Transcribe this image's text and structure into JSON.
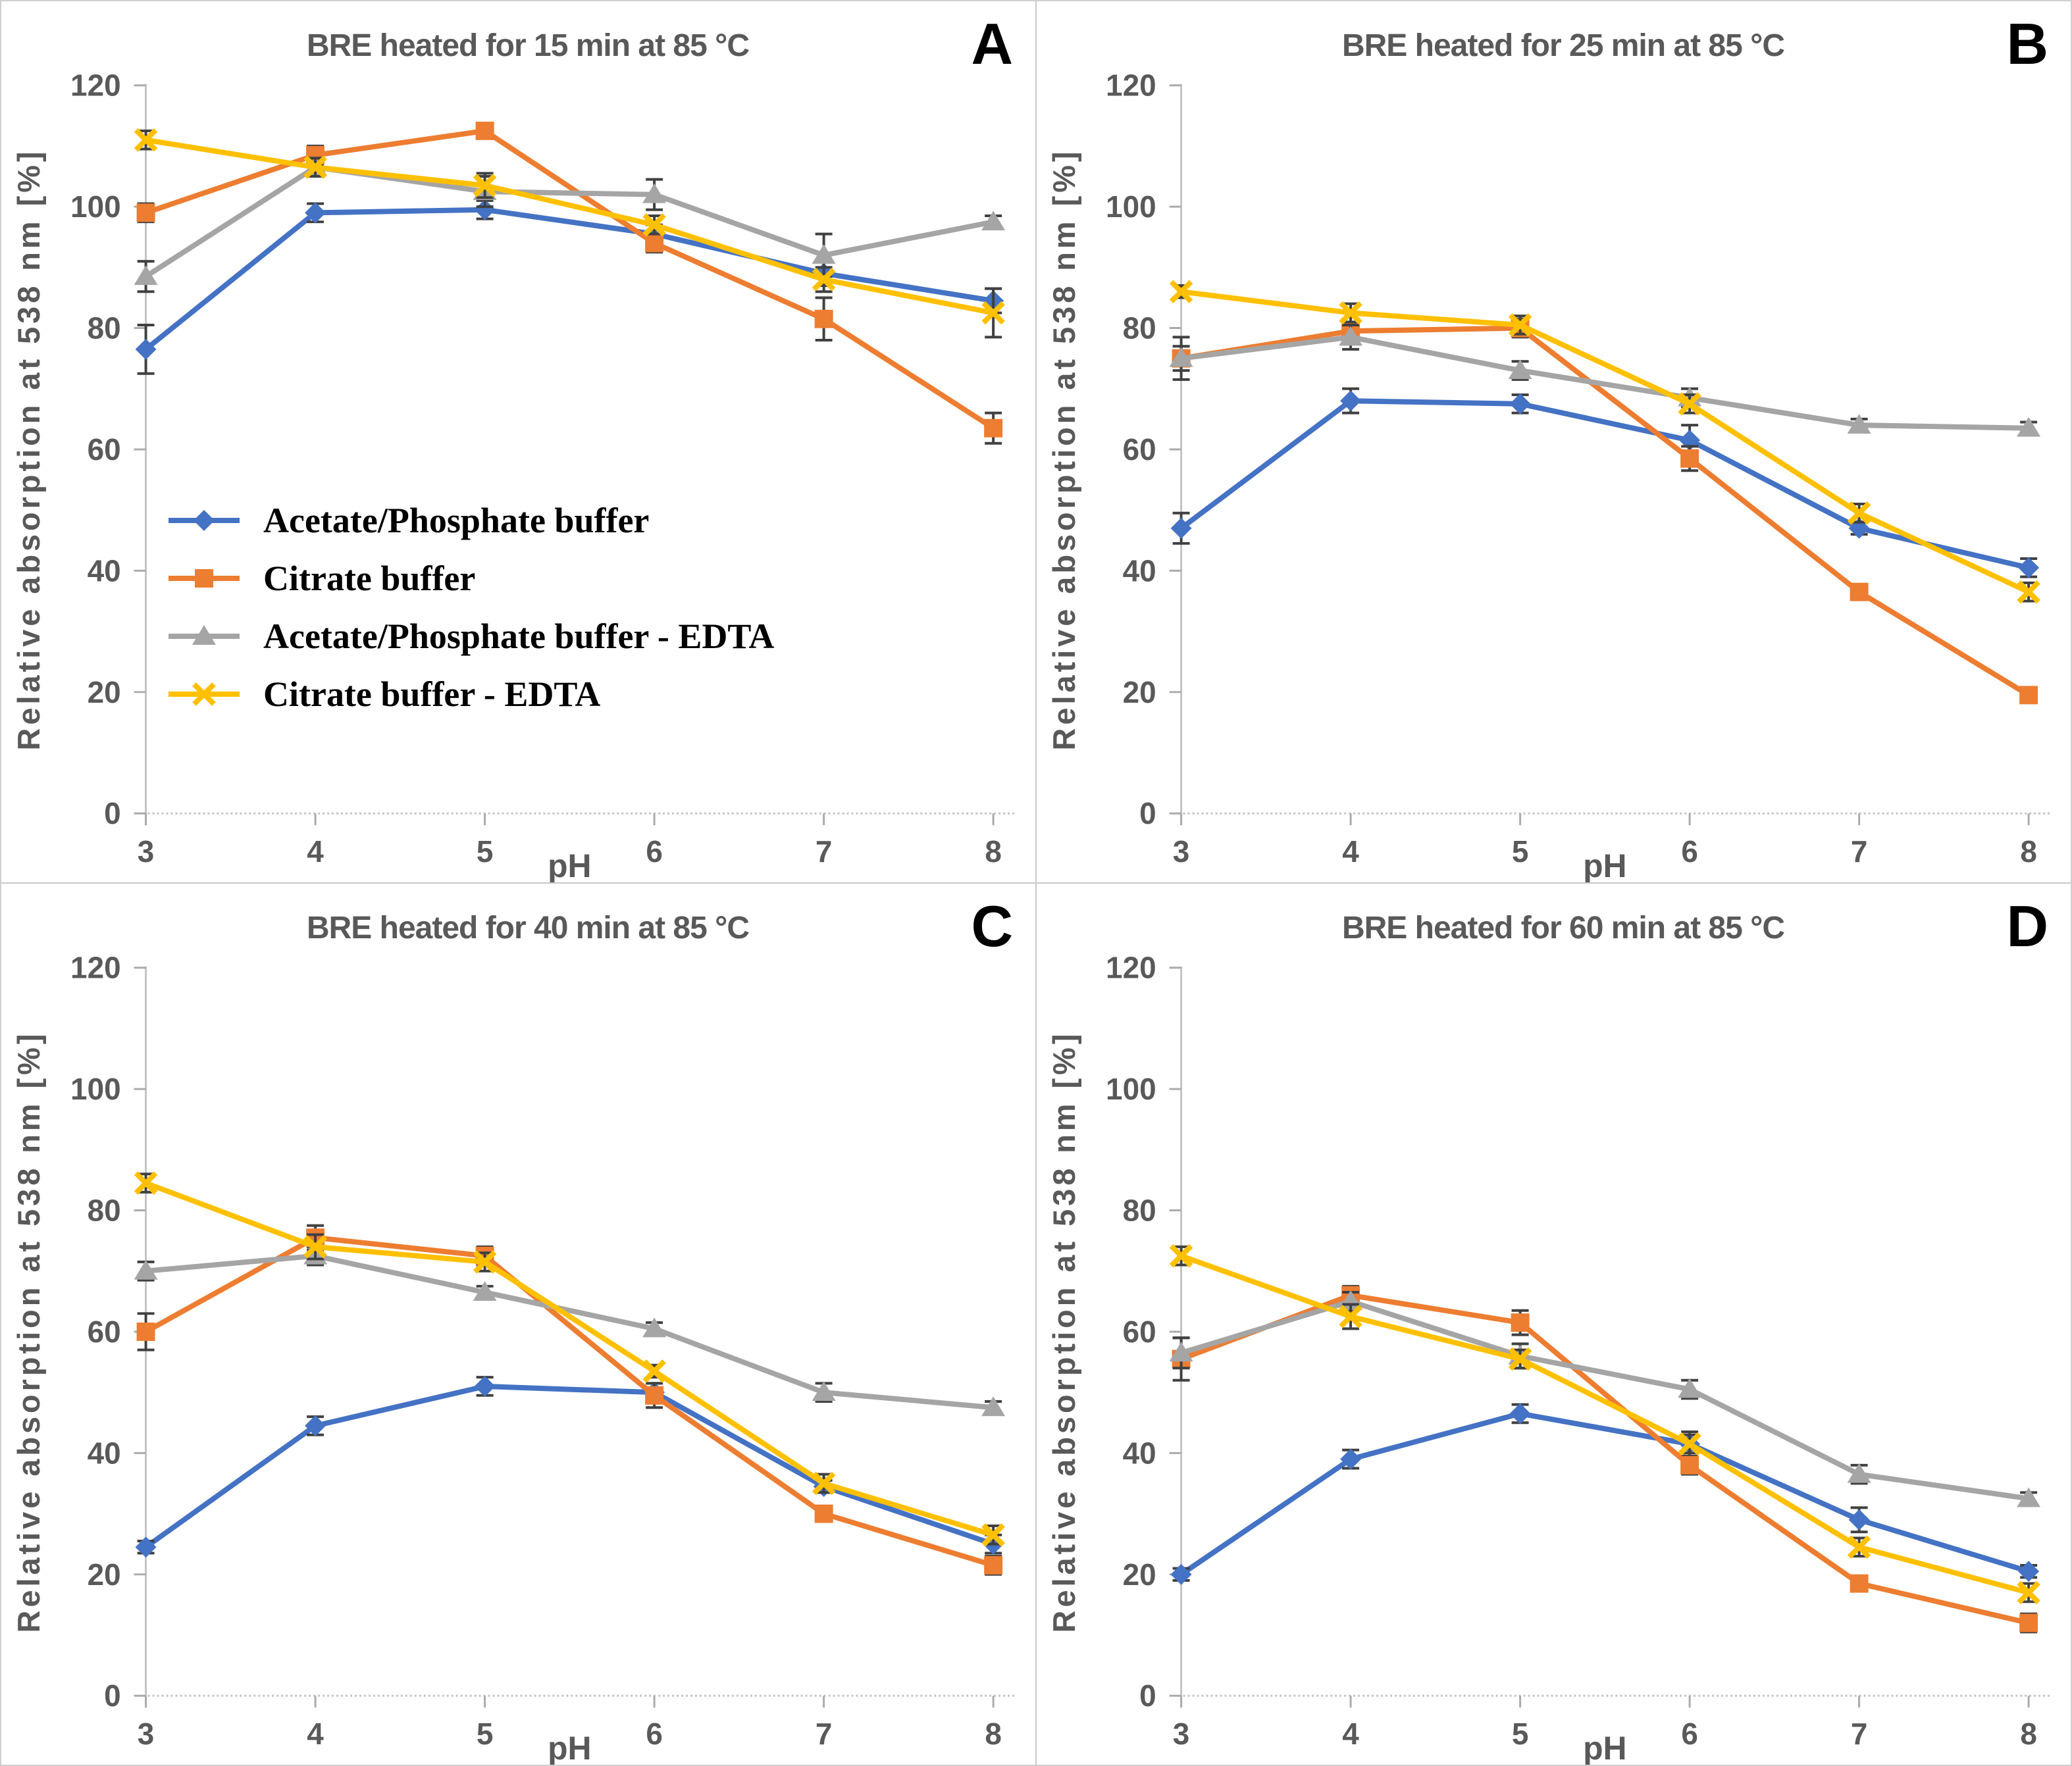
{
  "axes": {
    "ylabel": "Relative absorption at 538 nm [%]",
    "xlabel": "pH",
    "ymin": 0,
    "ymax": 120,
    "yticks": [
      0,
      20,
      40,
      60,
      80,
      100,
      120
    ],
    "x_categories": [
      3,
      4,
      5,
      6,
      7,
      8
    ],
    "grid": false,
    "axis_text_color": "#595959",
    "axis_line_color": "#c4c4c4",
    "tick_color": "#ababab",
    "error_bar_color": "#404040"
  },
  "legend": {
    "position": "inside-left-panel-A",
    "items": [
      "Acetate/Phosphate buffer",
      "Citrate buffer",
      "Acetate/Phosphate buffer - EDTA",
      "Citrate buffer - EDTA"
    ]
  },
  "chart_data": [
    {
      "type": "line",
      "panel": "A",
      "letter": "A",
      "title": "BRE heated for 15 min at 85 °C",
      "xlabel": "pH",
      "ylabel": "Relative absorption at 538 nm [%]",
      "x": [
        3,
        4,
        5,
        6,
        7,
        8
      ],
      "ylim": [
        0,
        120
      ],
      "series": [
        {
          "name": "Acetate/Phosphate buffer",
          "color": "#4472C4",
          "marker": "diamond",
          "values": [
            76.5,
            99,
            99.5,
            95.5,
            89,
            84.5
          ],
          "errors": [
            4,
            1.5,
            1.5,
            1.5,
            2,
            2
          ]
        },
        {
          "name": "Citrate buffer",
          "color": "#ED7D31",
          "marker": "square",
          "values": [
            99,
            108.5,
            112.5,
            94,
            81.5,
            63.5
          ],
          "errors": [
            1.5,
            1.5,
            1,
            1.5,
            3.5,
            2.5
          ]
        },
        {
          "name": "Acetate/Phosphate buffer - EDTA",
          "color": "#A5A5A5",
          "marker": "triangle",
          "values": [
            88.5,
            106.5,
            102.5,
            102,
            92,
            97.5
          ],
          "errors": [
            2.5,
            1.5,
            2.5,
            2.5,
            3.5,
            1
          ]
        },
        {
          "name": "Citrate buffer - EDTA",
          "color": "#FFC000",
          "marker": "x",
          "values": [
            111,
            106.5,
            103.5,
            97,
            88,
            82.5
          ],
          "errors": [
            1.5,
            1.5,
            2,
            1.5,
            2,
            4
          ]
        }
      ]
    },
    {
      "type": "line",
      "panel": "B",
      "letter": "B",
      "title": "BRE heated for 25 min at 85 °C",
      "xlabel": "pH",
      "ylabel": "Relative absorption at 538 nm [%]",
      "x": [
        3,
        4,
        5,
        6,
        7,
        8
      ],
      "ylim": [
        0,
        120
      ],
      "series": [
        {
          "name": "Acetate/Phosphate buffer",
          "color": "#4472C4",
          "marker": "diamond",
          "values": [
            47,
            68,
            67.5,
            61.5,
            47,
            40.5
          ],
          "errors": [
            2.5,
            2,
            1.5,
            2.5,
            1,
            1.5
          ]
        },
        {
          "name": "Citrate buffer",
          "color": "#ED7D31",
          "marker": "square",
          "values": [
            75,
            79.5,
            80,
            58.5,
            36.5,
            19.5
          ],
          "errors": [
            2,
            1,
            1.5,
            2,
            1,
            1
          ]
        },
        {
          "name": "Acetate/Phosphate buffer - EDTA",
          "color": "#A5A5A5",
          "marker": "triangle",
          "values": [
            75,
            78.5,
            73,
            68.5,
            64,
            63.5
          ],
          "errors": [
            3.5,
            2,
            1.5,
            1.5,
            1,
            1
          ]
        },
        {
          "name": "Citrate buffer - EDTA",
          "color": "#FFC000",
          "marker": "x",
          "values": [
            86,
            82.5,
            80.5,
            67.5,
            49.5,
            36.5
          ],
          "errors": [
            1,
            1.5,
            1.5,
            1.5,
            1.5,
            1.5
          ]
        }
      ]
    },
    {
      "type": "line",
      "panel": "C",
      "letter": "C",
      "title": "BRE heated for 40 min at 85 °C",
      "xlabel": "pH",
      "ylabel": "Relative absorption at 538 nm [%]",
      "x": [
        3,
        4,
        5,
        6,
        7,
        8
      ],
      "ylim": [
        0,
        120
      ],
      "series": [
        {
          "name": "Acetate/Phosphate buffer",
          "color": "#4472C4",
          "marker": "diamond",
          "values": [
            24.5,
            44.5,
            51,
            50,
            34.5,
            25
          ],
          "errors": [
            1,
            1.5,
            1.5,
            1.5,
            1,
            1.5
          ]
        },
        {
          "name": "Citrate buffer",
          "color": "#ED7D31",
          "marker": "square",
          "values": [
            60,
            75.5,
            72.5,
            49.5,
            30,
            21.5
          ],
          "errors": [
            3,
            2,
            1.5,
            2,
            1,
            1.5
          ]
        },
        {
          "name": "Acetate/Phosphate buffer - EDTA",
          "color": "#A5A5A5",
          "marker": "triangle",
          "values": [
            70,
            72.5,
            66.5,
            60.5,
            50,
            47.5
          ],
          "errors": [
            1.5,
            1.5,
            1,
            1,
            1.5,
            1
          ]
        },
        {
          "name": "Citrate buffer - EDTA",
          "color": "#FFC000",
          "marker": "x",
          "values": [
            84.5,
            74,
            71.5,
            53.5,
            35,
            26.5
          ],
          "errors": [
            1.5,
            2,
            1.5,
            1,
            1.5,
            1.5
          ]
        }
      ]
    },
    {
      "type": "line",
      "panel": "D",
      "letter": "D",
      "title": "BRE heated for 60 min at 85 °C",
      "xlabel": "pH",
      "ylabel": "Relative absorption at 538 nm [%]",
      "x": [
        3,
        4,
        5,
        6,
        7,
        8
      ],
      "ylim": [
        0,
        120
      ],
      "series": [
        {
          "name": "Acetate/Phosphate buffer",
          "color": "#4472C4",
          "marker": "diamond",
          "values": [
            20,
            39,
            46.5,
            41.5,
            29,
            20.5
          ],
          "errors": [
            1,
            1.5,
            1.5,
            2,
            2,
            1
          ]
        },
        {
          "name": "Citrate buffer",
          "color": "#ED7D31",
          "marker": "square",
          "values": [
            55.5,
            66,
            61.5,
            38,
            18.5,
            12
          ],
          "errors": [
            3.5,
            1.5,
            2,
            1.5,
            1,
            1.5
          ]
        },
        {
          "name": "Acetate/Phosphate buffer - EDTA",
          "color": "#A5A5A5",
          "marker": "triangle",
          "values": [
            56.5,
            65,
            56,
            50.5,
            36.5,
            32.5
          ],
          "errors": [
            2.5,
            1.5,
            2,
            1.5,
            1.5,
            1
          ]
        },
        {
          "name": "Citrate buffer - EDTA",
          "color": "#FFC000",
          "marker": "x",
          "values": [
            72.5,
            62.5,
            55.5,
            41.5,
            24.5,
            17
          ],
          "errors": [
            1.5,
            2,
            1.5,
            1.5,
            1.5,
            1.5
          ]
        }
      ]
    }
  ]
}
